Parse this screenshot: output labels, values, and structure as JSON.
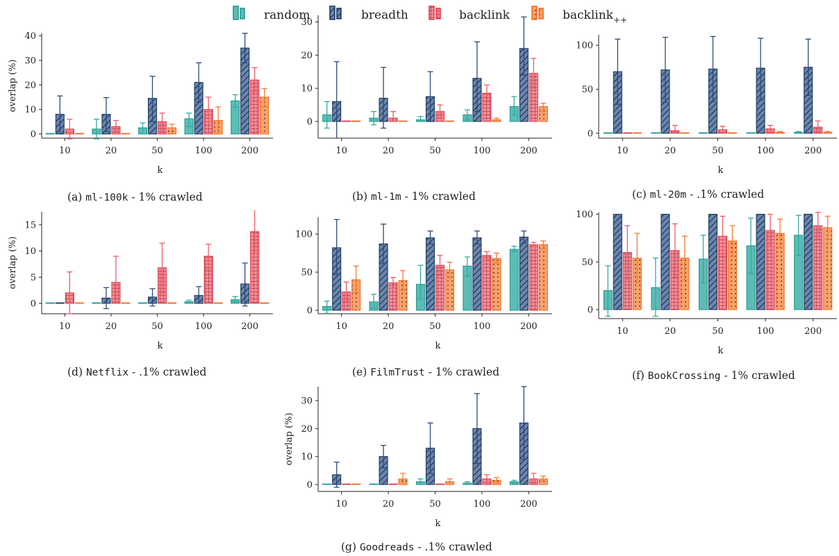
{
  "figure": {
    "legend": [
      {
        "name": "random",
        "color": "#3aaca6",
        "pattern": "plain"
      },
      {
        "name": "breadth",
        "color": "#2f4a73",
        "pattern": "diag"
      },
      {
        "name": "backlink",
        "color": "#f0606e",
        "pattern": "grid"
      },
      {
        "name": "backlink",
        "sub": "++",
        "color": "#f6803a",
        "pattern": "dots"
      }
    ]
  },
  "chart_data": [
    {
      "id": "a",
      "type": "bar",
      "caption": {
        "prefix": "(a) ",
        "dataset": "ml-100k",
        "suffix": " - 1% crawled"
      },
      "ylabel": "overlap (%)",
      "xlabel": "k",
      "categories": [
        "10",
        "20",
        "50",
        "100",
        "200"
      ],
      "ylim": [
        -2,
        41
      ],
      "yticks": [
        0,
        10,
        20,
        30,
        40
      ],
      "series": [
        {
          "name": "random",
          "values": [
            0,
            2,
            2.5,
            6.2,
            13.5
          ],
          "err": [
            [
              0,
              0
            ],
            [
              -2,
              6
            ],
            [
              0,
              4.5
            ],
            [
              3,
              8.5
            ],
            [
              11,
              16
            ]
          ]
        },
        {
          "name": "breadth",
          "values": [
            8,
            8,
            14.5,
            21,
            35
          ],
          "err": [
            [
              0,
              15.5
            ],
            [
              1,
              14.8
            ],
            [
              5,
              23.5
            ],
            [
              13,
              29
            ],
            [
              29,
              41
            ]
          ]
        },
        {
          "name": "backlink",
          "values": [
            2,
            3,
            5,
            10,
            22
          ],
          "err": [
            [
              -2,
              6
            ],
            [
              1,
              5.5
            ],
            [
              1,
              8.5
            ],
            [
              5,
              15
            ],
            [
              17,
              27
            ]
          ]
        },
        {
          "name": "backlink++",
          "values": [
            0,
            0,
            2.5,
            5.5,
            15
          ],
          "err": [
            [
              0,
              0
            ],
            [
              0,
              0
            ],
            [
              0,
              4
            ],
            [
              0,
              11
            ],
            [
              11,
              18.5
            ]
          ]
        }
      ]
    },
    {
      "id": "b",
      "type": "bar",
      "caption": {
        "prefix": "(b) ",
        "dataset": "ml-1m",
        "suffix": " - 1% crawled"
      },
      "ylabel": "",
      "xlabel": "",
      "categories": [
        "10",
        "20",
        "50",
        "100",
        "200"
      ],
      "ylim": [
        -4.5,
        32
      ],
      "yticks": [
        0,
        10,
        20,
        30
      ],
      "series": [
        {
          "name": "random",
          "values": [
            2,
            1,
            0.5,
            2,
            4.5
          ],
          "err": [
            [
              -2,
              6
            ],
            [
              -1,
              3
            ],
            [
              0,
              1.5
            ],
            [
              0.5,
              3.5
            ],
            [
              2,
              7.5
            ]
          ]
        },
        {
          "name": "breadth",
          "values": [
            6,
            7,
            7.5,
            13,
            22
          ],
          "err": [
            [
              -5,
              18
            ],
            [
              -2,
              16.3
            ],
            [
              0,
              15
            ],
            [
              3,
              24
            ],
            [
              14,
              31.5
            ]
          ]
        },
        {
          "name": "backlink",
          "values": [
            0,
            1,
            3,
            8.5,
            14.5
          ],
          "err": [
            [
              0,
              0
            ],
            [
              0,
              3
            ],
            [
              1,
              5
            ],
            [
              6,
              11
            ],
            [
              10,
              19
            ]
          ]
        },
        {
          "name": "backlink++",
          "values": [
            0,
            0,
            0,
            0.5,
            4.5
          ],
          "err": [
            [
              0,
              0
            ],
            [
              0,
              0
            ],
            [
              0,
              0
            ],
            [
              0,
              1
            ],
            [
              3,
              5.5
            ]
          ]
        }
      ]
    },
    {
      "id": "c",
      "type": "bar",
      "caption": {
        "prefix": "(c) ",
        "dataset": "ml-20m",
        "suffix": " - .1% crawled"
      },
      "ylabel": "",
      "xlabel": "k",
      "categories": [
        "10",
        "20",
        "50",
        "100",
        "200"
      ],
      "ylim": [
        -5,
        112
      ],
      "yticks": [
        0,
        50,
        100
      ],
      "series": [
        {
          "name": "random",
          "values": [
            0,
            0,
            0,
            0,
            1
          ],
          "err": [
            [
              0,
              0
            ],
            [
              0,
              0
            ],
            [
              0,
              0
            ],
            [
              0,
              0
            ],
            [
              0,
              2
            ]
          ]
        },
        {
          "name": "breadth",
          "values": [
            70,
            72,
            73,
            74,
            75
          ],
          "err": [
            [
              33,
              107
            ],
            [
              35,
              109
            ],
            [
              36,
              110
            ],
            [
              38,
              108
            ],
            [
              43,
              107
            ]
          ]
        },
        {
          "name": "backlink",
          "values": [
            0,
            3,
            4,
            5,
            7
          ],
          "err": [
            [
              0,
              0
            ],
            [
              0,
              9
            ],
            [
              0,
              8
            ],
            [
              1,
              9
            ],
            [
              2,
              14
            ]
          ]
        },
        {
          "name": "backlink++",
          "values": [
            0,
            0,
            0,
            1,
            1
          ],
          "err": [
            [
              0,
              0
            ],
            [
              0,
              0
            ],
            [
              0,
              0
            ],
            [
              0,
              2
            ],
            [
              0,
              2
            ]
          ]
        }
      ]
    },
    {
      "id": "d",
      "type": "bar",
      "caption": {
        "prefix": "(d) ",
        "dataset": "Netflix",
        "suffix": " - .1% crawled"
      },
      "ylabel": "overlap (%)",
      "xlabel": "k",
      "categories": [
        "10",
        "20",
        "50",
        "100",
        "200"
      ],
      "ylim": [
        -2,
        17.5
      ],
      "yticks": [
        0,
        5,
        10,
        15
      ],
      "series": [
        {
          "name": "random",
          "values": [
            0,
            0,
            0,
            0.3,
            0.7
          ],
          "err": [
            [
              0,
              0
            ],
            [
              0,
              0
            ],
            [
              0,
              0
            ],
            [
              0,
              0.6
            ],
            [
              0.3,
              1.3
            ]
          ]
        },
        {
          "name": "breadth",
          "values": [
            0,
            1,
            1.2,
            1.5,
            3.7
          ],
          "err": [
            [
              0,
              0
            ],
            [
              -1,
              3
            ],
            [
              -0.5,
              2.8
            ],
            [
              0,
              3.2
            ],
            [
              -0.5,
              7.7
            ]
          ]
        },
        {
          "name": "backlink",
          "values": [
            2,
            4,
            6.8,
            9,
            13.7
          ],
          "err": [
            [
              -2,
              6
            ],
            [
              0,
              9
            ],
            [
              2,
              11.5
            ],
            [
              6.5,
              11.3
            ],
            [
              9.5,
              17.8
            ]
          ]
        },
        {
          "name": "backlink++",
          "values": [
            0,
            0,
            0,
            0,
            0
          ],
          "err": [
            [
              0,
              0
            ],
            [
              0,
              0
            ],
            [
              0,
              0
            ],
            [
              0,
              0
            ],
            [
              0,
              0
            ]
          ]
        }
      ]
    },
    {
      "id": "e",
      "type": "bar",
      "caption": {
        "prefix": "(e) ",
        "dataset": "FilmTrust",
        "suffix": " - 1% crawled"
      },
      "ylabel": "",
      "xlabel": "k",
      "categories": [
        "10",
        "20",
        "50",
        "100",
        "200"
      ],
      "ylim": [
        -5,
        122
      ],
      "yticks": [
        0,
        50,
        100
      ],
      "series": [
        {
          "name": "random",
          "values": [
            5,
            11,
            34,
            58,
            80
          ],
          "err": [
            [
              -4,
              12
            ],
            [
              3,
              21
            ],
            [
              15,
              59
            ],
            [
              45,
              70
            ],
            [
              77,
              84
            ]
          ]
        },
        {
          "name": "breadth",
          "values": [
            82,
            87,
            95,
            95,
            96
          ],
          "err": [
            [
              47,
              119
            ],
            [
              61,
              113
            ],
            [
              87,
              104
            ],
            [
              87,
              104
            ],
            [
              88,
              104
            ]
          ]
        },
        {
          "name": "backlink",
          "values": [
            24,
            36,
            59,
            72,
            86
          ],
          "err": [
            [
              12,
              37
            ],
            [
              29,
              43
            ],
            [
              46,
              72
            ],
            [
              67,
              77
            ],
            [
              84,
              89
            ]
          ]
        },
        {
          "name": "backlink++",
          "values": [
            40,
            39,
            53,
            68,
            86
          ],
          "err": [
            [
              23,
              58
            ],
            [
              26,
              52
            ],
            [
              43,
              63
            ],
            [
              62,
              75
            ],
            [
              81,
              91
            ]
          ]
        }
      ]
    },
    {
      "id": "f",
      "type": "bar",
      "caption": {
        "prefix": "(f) ",
        "dataset": "BookCrossing",
        "suffix": " - 1% crawled"
      },
      "ylabel": "",
      "xlabel": "k",
      "categories": [
        "10",
        "20",
        "50",
        "100",
        "200"
      ],
      "ylim": [
        -10,
        102
      ],
      "yticks": [
        0,
        50,
        100
      ],
      "series": [
        {
          "name": "random",
          "values": [
            20,
            23,
            53,
            67,
            78
          ],
          "err": [
            [
              -7,
              46
            ],
            [
              -7,
              54
            ],
            [
              28,
              78
            ],
            [
              38,
              96
            ],
            [
              57,
              99
            ]
          ]
        },
        {
          "name": "breadth",
          "values": [
            100,
            100,
            100,
            100,
            100
          ],
          "err": [
            [
              100,
              100
            ],
            [
              100,
              100
            ],
            [
              100,
              100
            ],
            [
              100,
              100
            ],
            [
              100,
              100
            ]
          ]
        },
        {
          "name": "backlink",
          "values": [
            60,
            62,
            77,
            83,
            88
          ],
          "err": [
            [
              32,
              88
            ],
            [
              34,
              90
            ],
            [
              56,
              98
            ],
            [
              66,
              100
            ],
            [
              74,
              102
            ]
          ]
        },
        {
          "name": "backlink++",
          "values": [
            54,
            54,
            72,
            80,
            86
          ],
          "err": [
            [
              28,
              80
            ],
            [
              31,
              77
            ],
            [
              56,
              88
            ],
            [
              65,
              95
            ],
            [
              74,
              98
            ]
          ]
        }
      ]
    },
    {
      "id": "g",
      "type": "bar",
      "caption": {
        "prefix": "(g) ",
        "dataset": "Goodreads",
        "suffix": " - .1% crawled"
      },
      "ylabel": "overlap (%)",
      "xlabel": "k",
      "categories": [
        "10",
        "20",
        "50",
        "100",
        "200"
      ],
      "ylim": [
        -1.5,
        35
      ],
      "yticks": [
        0,
        10,
        20,
        30
      ],
      "series": [
        {
          "name": "random",
          "values": [
            0,
            0,
            1,
            0.5,
            1
          ],
          "err": [
            [
              0,
              0
            ],
            [
              0,
              0
            ],
            [
              0,
              2
            ],
            [
              0,
              1
            ],
            [
              0.5,
              1.5
            ]
          ]
        },
        {
          "name": "breadth",
          "values": [
            3.5,
            10,
            13,
            20,
            22
          ],
          "err": [
            [
              -1,
              8
            ],
            [
              6,
              14
            ],
            [
              4,
              22
            ],
            [
              7.5,
              32.5
            ],
            [
              9,
              35
            ]
          ]
        },
        {
          "name": "backlink",
          "values": [
            0,
            0,
            0,
            2,
            2
          ],
          "err": [
            [
              0,
              0
            ],
            [
              0,
              0
            ],
            [
              0,
              0
            ],
            [
              0,
              3.5
            ],
            [
              0,
              4
            ]
          ]
        },
        {
          "name": "backlink++",
          "values": [
            0,
            2,
            1,
            1.5,
            2
          ],
          "err": [
            [
              0,
              0
            ],
            [
              0,
              4
            ],
            [
              0,
              2
            ],
            [
              0.5,
              2.5
            ],
            [
              1,
              3
            ]
          ]
        }
      ]
    }
  ]
}
